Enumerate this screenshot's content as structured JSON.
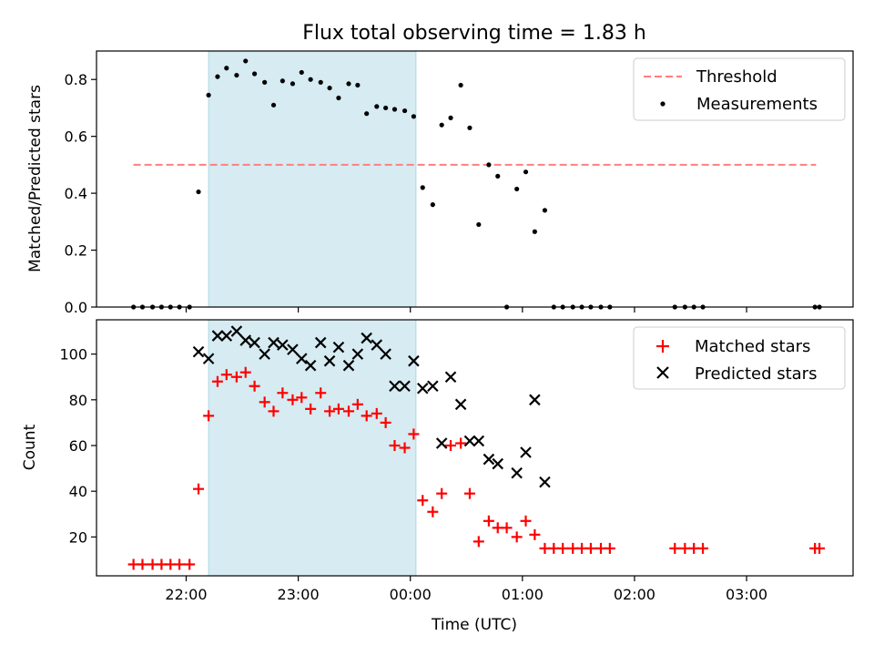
{
  "title": "Flux total observing time = 1.83 h",
  "xlabel": "Time (UTC)",
  "chart_data": [
    {
      "type": "scatter",
      "ylabel": "Matched/Predicted stars",
      "xlim_hours": [
        21.2,
        27.95
      ],
      "ylim": [
        0,
        0.9
      ],
      "yticks": [
        0.0,
        0.2,
        0.4,
        0.6,
        0.8
      ],
      "ytick_labels": [
        "0.0",
        "0.2",
        "0.4",
        "0.6",
        "0.8"
      ],
      "legend_position": "top-right",
      "legend": [
        "Threshold",
        "Measurements"
      ],
      "threshold": {
        "value": 0.5,
        "x_start_hours": 21.53,
        "x_end_hours": 27.62,
        "color": "#ff7f7f"
      },
      "series": [
        {
          "name": "Measurements",
          "marker": "dot",
          "color": "#000000",
          "points": [
            [
              21.53,
              0
            ],
            [
              21.61,
              0
            ],
            [
              21.7,
              0
            ],
            [
              21.78,
              0
            ],
            [
              21.86,
              0
            ],
            [
              21.94,
              0
            ],
            [
              22.03,
              0
            ],
            [
              22.11,
              0.405
            ],
            [
              22.2,
              0.745
            ],
            [
              22.28,
              0.81
            ],
            [
              22.36,
              0.84
            ],
            [
              22.45,
              0.815
            ],
            [
              22.53,
              0.865
            ],
            [
              22.61,
              0.82
            ],
            [
              22.7,
              0.79
            ],
            [
              22.78,
              0.71
            ],
            [
              22.86,
              0.795
            ],
            [
              22.95,
              0.785
            ],
            [
              23.03,
              0.825
            ],
            [
              23.11,
              0.8
            ],
            [
              23.2,
              0.79
            ],
            [
              23.28,
              0.77
            ],
            [
              23.36,
              0.735
            ],
            [
              23.45,
              0.785
            ],
            [
              23.53,
              0.78
            ],
            [
              23.61,
              0.68
            ],
            [
              23.7,
              0.705
            ],
            [
              23.78,
              0.7
            ],
            [
              23.86,
              0.695
            ],
            [
              23.95,
              0.69
            ],
            [
              24.03,
              0.67
            ],
            [
              24.11,
              0.42
            ],
            [
              24.2,
              0.36
            ],
            [
              24.28,
              0.64
            ],
            [
              24.36,
              0.665
            ],
            [
              24.45,
              0.78
            ],
            [
              24.53,
              0.63
            ],
            [
              24.61,
              0.29
            ],
            [
              24.7,
              0.5
            ],
            [
              24.78,
              0.46
            ],
            [
              24.86,
              0.0
            ],
            [
              24.95,
              0.415
            ],
            [
              25.03,
              0.475
            ],
            [
              25.11,
              0.265
            ],
            [
              25.2,
              0.34
            ],
            [
              25.28,
              0
            ],
            [
              25.36,
              0
            ],
            [
              25.45,
              0
            ],
            [
              25.53,
              0
            ],
            [
              25.61,
              0
            ],
            [
              25.7,
              0
            ],
            [
              25.78,
              0
            ],
            [
              26.36,
              0
            ],
            [
              26.45,
              0
            ],
            [
              26.53,
              0
            ],
            [
              26.61,
              0
            ],
            [
              27.61,
              0
            ],
            [
              27.65,
              0
            ]
          ]
        }
      ]
    },
    {
      "type": "scatter",
      "ylabel": "Count",
      "xlim_hours": [
        21.2,
        27.95
      ],
      "ylim": [
        3,
        115
      ],
      "yticks": [
        20,
        40,
        60,
        80,
        100
      ],
      "ytick_labels": [
        "20",
        "40",
        "60",
        "80",
        "100"
      ],
      "legend_position": "top-right",
      "legend": [
        "Matched stars",
        "Predicted stars"
      ],
      "series": [
        {
          "name": "Matched stars",
          "marker": "plus",
          "color": "#ff0000",
          "points": [
            [
              21.53,
              8
            ],
            [
              21.61,
              8
            ],
            [
              21.7,
              8
            ],
            [
              21.78,
              8
            ],
            [
              21.86,
              8
            ],
            [
              21.94,
              8
            ],
            [
              22.03,
              8
            ],
            [
              22.11,
              41
            ],
            [
              22.2,
              73
            ],
            [
              22.28,
              88
            ],
            [
              22.36,
              91
            ],
            [
              22.45,
              90
            ],
            [
              22.53,
              92
            ],
            [
              22.61,
              86
            ],
            [
              22.7,
              79
            ],
            [
              22.78,
              75
            ],
            [
              22.86,
              83
            ],
            [
              22.95,
              80
            ],
            [
              23.03,
              81
            ],
            [
              23.11,
              76
            ],
            [
              23.2,
              83
            ],
            [
              23.28,
              75
            ],
            [
              23.36,
              76
            ],
            [
              23.45,
              75
            ],
            [
              23.53,
              78
            ],
            [
              23.61,
              73
            ],
            [
              23.7,
              74
            ],
            [
              23.78,
              70
            ],
            [
              23.86,
              60
            ],
            [
              23.95,
              59
            ],
            [
              24.03,
              65
            ],
            [
              24.11,
              36
            ],
            [
              24.2,
              31
            ],
            [
              24.28,
              39
            ],
            [
              24.36,
              60
            ],
            [
              24.45,
              61
            ],
            [
              24.53,
              39
            ],
            [
              24.61,
              18
            ],
            [
              24.7,
              27
            ],
            [
              24.78,
              24
            ],
            [
              24.86,
              24
            ],
            [
              24.95,
              20
            ],
            [
              25.03,
              27
            ],
            [
              25.11,
              21
            ],
            [
              25.2,
              15
            ],
            [
              25.28,
              15
            ],
            [
              25.36,
              15
            ],
            [
              25.45,
              15
            ],
            [
              25.53,
              15
            ],
            [
              25.61,
              15
            ],
            [
              25.7,
              15
            ],
            [
              25.78,
              15
            ],
            [
              26.36,
              15
            ],
            [
              26.45,
              15
            ],
            [
              26.53,
              15
            ],
            [
              26.61,
              15
            ],
            [
              27.61,
              15
            ],
            [
              27.65,
              15
            ]
          ]
        },
        {
          "name": "Predicted stars",
          "marker": "x",
          "color": "#000000",
          "points": [
            [
              22.11,
              101
            ],
            [
              22.2,
              98
            ],
            [
              22.28,
              108
            ],
            [
              22.36,
              108
            ],
            [
              22.45,
              110
            ],
            [
              22.53,
              106
            ],
            [
              22.61,
              105
            ],
            [
              22.7,
              100
            ],
            [
              22.78,
              105
            ],
            [
              22.86,
              104
            ],
            [
              22.95,
              102
            ],
            [
              23.03,
              98
            ],
            [
              23.11,
              95
            ],
            [
              23.2,
              105
            ],
            [
              23.28,
              97
            ],
            [
              23.36,
              103
            ],
            [
              23.45,
              95
            ],
            [
              23.53,
              100
            ],
            [
              23.61,
              107
            ],
            [
              23.7,
              104
            ],
            [
              23.78,
              100
            ],
            [
              23.86,
              86
            ],
            [
              23.95,
              86
            ],
            [
              24.03,
              97
            ],
            [
              24.11,
              85
            ],
            [
              24.2,
              86
            ],
            [
              24.28,
              61
            ],
            [
              24.36,
              90
            ],
            [
              24.45,
              78
            ],
            [
              24.53,
              62
            ],
            [
              24.61,
              62
            ],
            [
              24.7,
              54
            ],
            [
              24.78,
              52
            ],
            [
              24.95,
              48
            ],
            [
              25.03,
              57
            ],
            [
              25.11,
              80
            ],
            [
              25.2,
              44
            ]
          ]
        }
      ]
    }
  ],
  "x_axis": {
    "tick_hours": [
      22,
      23,
      24,
      25,
      26,
      27
    ],
    "tick_labels": [
      "22:00",
      "23:00",
      "00:00",
      "01:00",
      "02:00",
      "03:00"
    ]
  },
  "shaded_region": {
    "start_hours": 22.2,
    "end_hours": 24.05,
    "color": "#add8e6"
  }
}
